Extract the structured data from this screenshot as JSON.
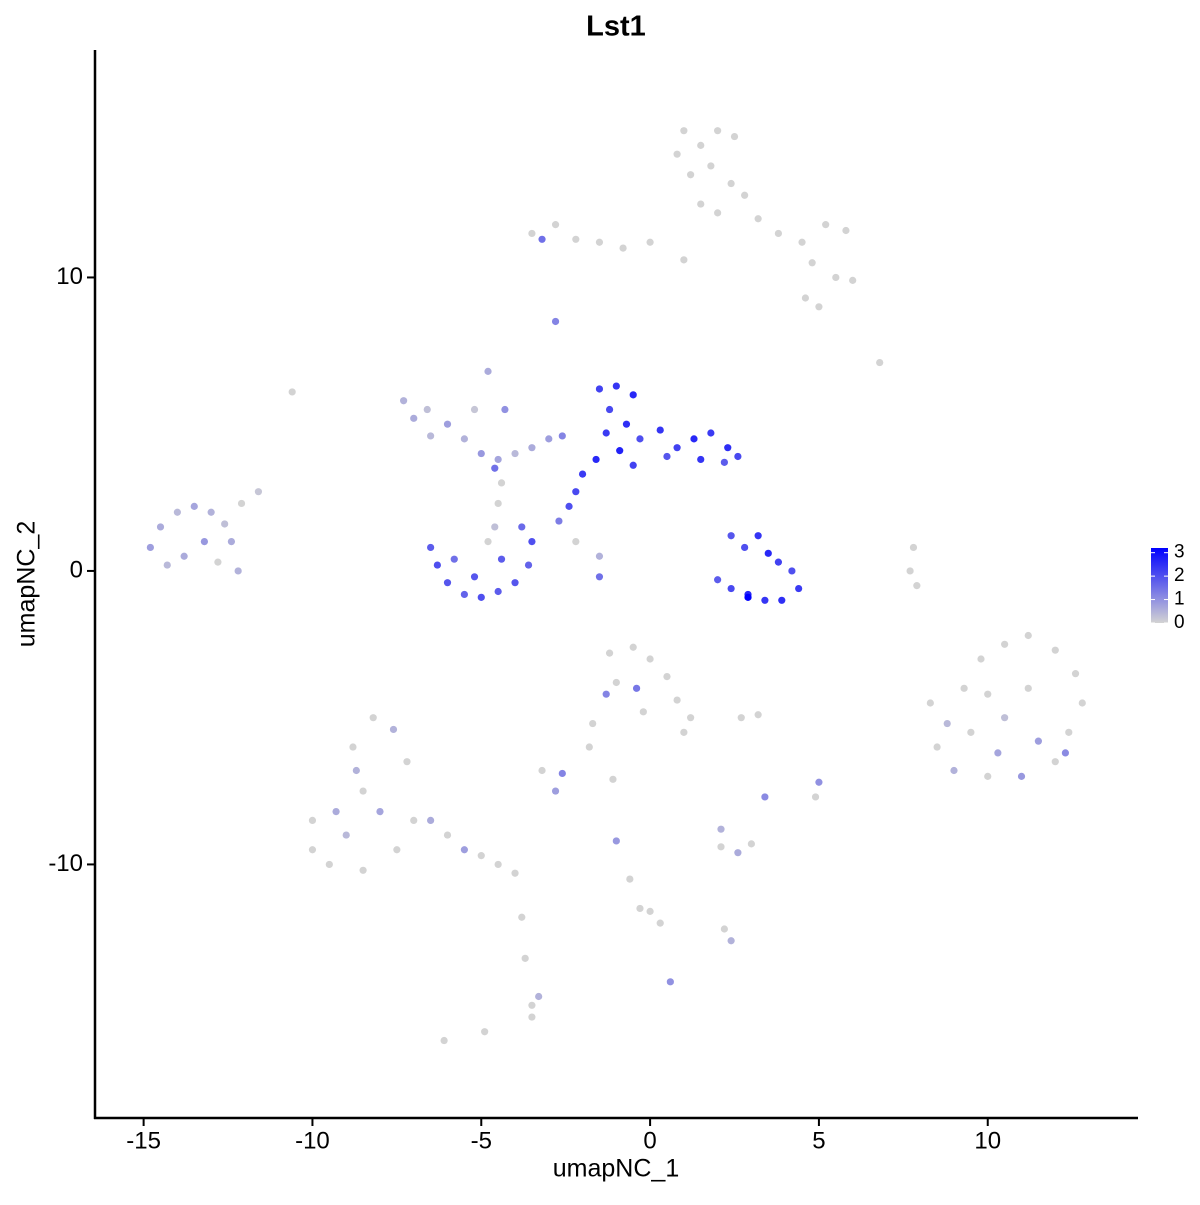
{
  "chart_data": {
    "type": "scatter",
    "title": "Lst1",
    "x_label": "umapNC_1",
    "y_label": "umapNC_2",
    "xlim": [
      -16.44,
      14.45
    ],
    "ylim": [
      -18.64,
      17.75
    ],
    "xticks": [
      -15,
      -10,
      -5,
      0,
      5,
      10
    ],
    "yticks": [
      -10,
      0,
      10
    ],
    "color_low": "#d3d3d3",
    "color_high": "#0000ff",
    "clim": [
      0,
      3.2
    ],
    "cticks": [
      0,
      1,
      2,
      3
    ],
    "x": [
      1,
      1.5,
      2,
      2.5,
      1.2,
      1.8,
      2.4,
      0.8,
      1.5,
      2.8,
      3.2,
      2,
      3.8,
      4.5,
      5.2,
      5.8,
      4.8,
      5.5,
      6,
      4.6,
      5,
      -3.5,
      -2.8,
      -2.2,
      -1.5,
      -0.8,
      0,
      -3.2,
      1,
      -2.8,
      6.8,
      -10.6,
      -7.3,
      -7,
      -6.6,
      -6,
      -5.5,
      -5,
      -4.5,
      -4,
      -3.5,
      -3,
      -2.6,
      -6.5,
      -5.2,
      -4.8,
      -4.3,
      -4.6,
      -1.5,
      -1,
      -0.5,
      -1.2,
      -0.7,
      -1.3,
      -0.3,
      0.3,
      0.8,
      1.3,
      1.8,
      2.3,
      2.6,
      1.5,
      0.5,
      -0.5,
      -1.6,
      -2,
      -2.2,
      -2.4,
      2.2,
      -0.9,
      -2.7,
      -2.2,
      -1.5,
      -1.5,
      -4.4,
      -4.5,
      -6.5,
      -6.3,
      -6,
      -5.5,
      -5,
      -4.5,
      -4,
      -3.6,
      -3.5,
      -3.8,
      -4.4,
      -5.2,
      -5.8,
      -4.8,
      -4.6,
      2.4,
      2.8,
      3.2,
      3.5,
      3.8,
      4.2,
      4.4,
      3.9,
      3.4,
      2.9,
      2.4,
      2,
      2.9,
      -14.8,
      -14.5,
      -14,
      -13.5,
      -13,
      -12.6,
      -13.2,
      -13.8,
      -14.3,
      -12.8,
      -12.2,
      -12.4,
      -12.1,
      -11.6,
      7.8,
      7.7,
      7.9,
      8.3,
      8.8,
      9.3,
      9.8,
      10.5,
      11.2,
      12,
      12.6,
      12.8,
      12.4,
      12,
      11,
      10,
      9,
      8.5,
      9.5,
      10.5,
      11.2,
      10,
      11.5,
      10.3,
      12.3,
      -1.2,
      -0.5,
      0,
      0.5,
      -1,
      -0.4,
      0.8,
      1.2,
      -0.2,
      -1.3,
      1,
      -1.7,
      -1.8,
      -3.2,
      -2.6,
      -2.8,
      -1.1,
      2.7,
      3.2,
      5,
      4.9,
      3.4,
      2.1,
      2.6,
      3,
      2.1,
      -1,
      -0.6,
      -0.3,
      0,
      0.3,
      2.2,
      2.4,
      -3.8,
      -3.7,
      -3.5,
      -3.3,
      -3.5,
      0.6,
      -6.1,
      -4.9,
      -10,
      -10,
      -9.5,
      -9,
      -8.5,
      -8.8,
      -8.2,
      -7.6,
      -7.2,
      -8,
      -7.5,
      -8.5,
      -7,
      -6.5,
      -6,
      -5.5,
      -5,
      -4.5,
      -4,
      -9.3,
      -8.7
    ],
    "y": [
      15,
      14.5,
      15,
      14.8,
      13.5,
      13.8,
      13.2,
      14.2,
      12.5,
      12.8,
      12,
      12.2,
      11.5,
      11.2,
      11.8,
      11.6,
      10.5,
      10,
      9.9,
      9.3,
      9,
      11.5,
      11.8,
      11.3,
      11.2,
      11,
      11.2,
      11.3,
      10.6,
      8.5,
      7.1,
      6.1,
      5.8,
      5.2,
      5.5,
      5,
      4.5,
      4,
      3.8,
      4,
      4.2,
      4.5,
      4.6,
      4.6,
      5.5,
      6.8,
      5.5,
      3.5,
      6.2,
      6.3,
      6,
      5.5,
      5,
      4.7,
      4.5,
      4.8,
      4.2,
      4.5,
      4.7,
      4.2,
      3.9,
      3.8,
      3.9,
      3.6,
      3.8,
      3.3,
      2.7,
      2.2,
      3.7,
      4.1,
      1.7,
      1,
      0.5,
      -0.2,
      3,
      2.3,
      0.8,
      0.2,
      -0.4,
      -0.8,
      -0.9,
      -0.7,
      -0.4,
      0.2,
      1,
      1.5,
      0.4,
      -0.2,
      0.4,
      1,
      1.5,
      1.2,
      0.8,
      1.2,
      0.6,
      0.3,
      0,
      -0.6,
      -1,
      -1,
      -0.8,
      -0.6,
      -0.3,
      -0.9,
      0.8,
      1.5,
      2,
      2.2,
      2,
      1.6,
      1,
      0.5,
      0.2,
      0.3,
      0,
      1,
      2.3,
      2.7,
      0.8,
      0,
      -0.5,
      -4.5,
      -5.2,
      -4,
      -3,
      -2.5,
      -2.2,
      -2.7,
      -3.5,
      -4.5,
      -5.5,
      -6.5,
      -7,
      -7,
      -6.8,
      -6,
      -5.5,
      -5,
      -4,
      -4.2,
      -5.8,
      -6.2,
      -6.2,
      -2.8,
      -2.6,
      -3,
      -3.6,
      -3.8,
      -4,
      -4.4,
      -5,
      -4.8,
      -4.2,
      -5.5,
      -5.2,
      -6,
      -6.8,
      -6.9,
      -7.5,
      -7.1,
      -5,
      -4.9,
      -7.2,
      -7.7,
      -7.7,
      -9.4,
      -9.6,
      -9.3,
      -8.8,
      -9.2,
      -10.5,
      -11.5,
      -11.6,
      -12,
      -12.2,
      -12.6,
      -11.8,
      -13.2,
      -14.8,
      -14.5,
      -15.2,
      -14,
      -16,
      -15.7,
      -8.5,
      -9.5,
      -10,
      -9,
      -7.5,
      -6,
      -5,
      -5.4,
      -6.5,
      -8.2,
      -9.5,
      -10.2,
      -8.5,
      -8.5,
      -9,
      -9.5,
      -9.7,
      -10,
      -10.3,
      -8.2,
      -6.8
    ],
    "values": [
      0,
      0,
      0,
      0,
      0,
      0,
      0,
      0,
      0,
      0,
      0,
      0,
      0,
      0,
      0,
      0,
      0,
      0,
      0,
      0,
      0,
      0,
      0,
      0,
      0,
      0,
      0,
      1.5,
      0,
      1.2,
      0,
      0,
      0.5,
      0.6,
      0.3,
      0.8,
      0.5,
      0.9,
      0.7,
      0.4,
      0.6,
      0.8,
      1.2,
      0.4,
      0.2,
      0.6,
      1,
      1.5,
      2.2,
      2.4,
      2.6,
      2.1,
      2.5,
      2.3,
      2,
      2.4,
      2.2,
      2.6,
      2.3,
      2.5,
      2.1,
      2.4,
      1.9,
      2.2,
      2.6,
      2.3,
      2.1,
      2,
      1.8,
      2.7,
      1.3,
      0,
      0.5,
      1.5,
      0,
      0,
      1.8,
      2,
      1.9,
      1.7,
      2,
      1.8,
      1.9,
      1.7,
      2,
      1.6,
      1.8,
      1.9,
      1.5,
      0,
      0.3,
      1.9,
      2,
      2.4,
      2.6,
      2.2,
      2,
      2.3,
      2.5,
      2.4,
      2.6,
      2.1,
      1.8,
      3.2,
      0.8,
      0.6,
      0.4,
      0.7,
      0.5,
      0.3,
      0.9,
      0.6,
      0.4,
      0,
      0.5,
      0.6,
      0,
      0.2,
      0,
      0,
      0,
      0,
      0.4,
      0,
      0,
      0,
      0,
      0,
      0,
      0,
      0,
      0,
      0.9,
      0,
      0.5,
      0,
      0,
      0.3,
      0,
      0,
      0.8,
      0.7,
      1.1,
      0,
      0,
      0,
      0,
      0,
      1.4,
      0,
      0,
      0,
      1.2,
      0,
      0,
      0,
      0,
      1.2,
      0.8,
      0,
      0,
      0,
      1,
      0,
      1.1,
      0,
      0.6,
      0,
      0.5,
      0.9,
      0,
      0,
      0,
      0,
      0,
      0.5,
      0,
      0,
      0,
      0.5,
      0,
      1,
      0,
      0,
      0,
      0,
      0,
      0.4,
      0,
      0,
      0,
      0.5,
      0,
      0.7,
      0,
      0,
      0,
      0.6,
      0,
      0.8,
      0,
      0,
      0,
      0.6,
      0.5
    ]
  }
}
